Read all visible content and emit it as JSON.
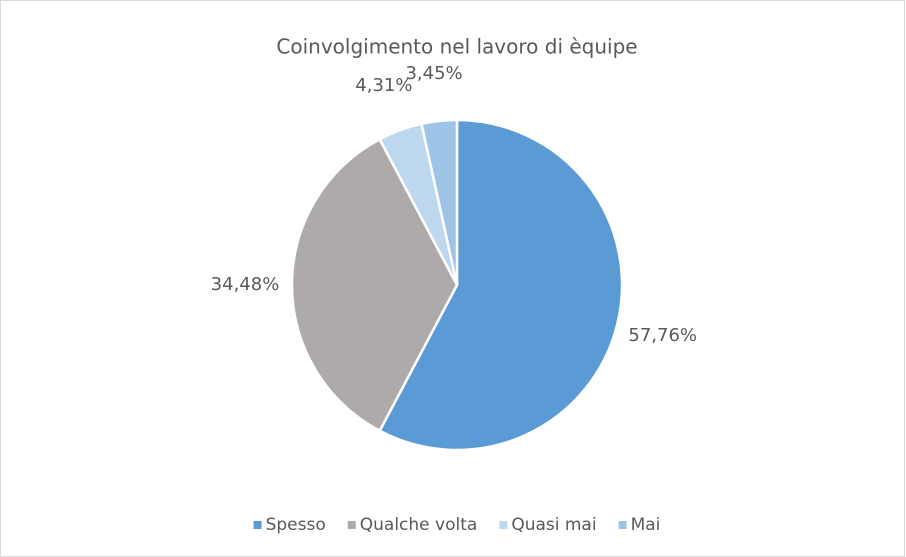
{
  "chart_data": {
    "type": "pie",
    "title": "Coinvolgimento nel lavoro di èquipe",
    "categories": [
      "Spesso",
      "Qualche volta",
      "Quasi mai",
      "Mai"
    ],
    "values": [
      57.76,
      34.48,
      4.31,
      3.45
    ],
    "value_labels": [
      "57,76%",
      "34,48%",
      "4,31%",
      "3,45%"
    ],
    "colors": [
      "#5b9bd5",
      "#aeaaaa",
      "#bdd7ee",
      "#9dc3e6"
    ],
    "legend": "bottom"
  }
}
